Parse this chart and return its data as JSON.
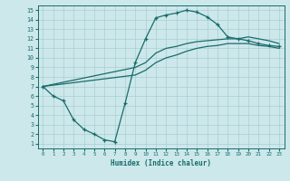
{
  "xlabel": "Humidex (Indice chaleur)",
  "background_color": "#cce8eb",
  "grid_color": "#aacdd2",
  "line_color": "#1a6b6b",
  "xlim": [
    -0.5,
    23.5
  ],
  "ylim": [
    0.5,
    15.5
  ],
  "xticks": [
    0,
    1,
    2,
    3,
    4,
    5,
    6,
    7,
    8,
    9,
    10,
    11,
    12,
    13,
    14,
    15,
    16,
    17,
    18,
    19,
    20,
    21,
    22,
    23
  ],
  "yticks": [
    1,
    2,
    3,
    4,
    5,
    6,
    7,
    8,
    9,
    10,
    11,
    12,
    13,
    14,
    15
  ],
  "curve_marker": {
    "x": [
      0,
      1,
      2,
      3,
      4,
      5,
      6,
      7,
      8,
      9,
      10,
      11,
      12,
      13,
      14,
      15,
      16,
      17,
      18,
      19,
      20,
      21,
      22,
      23
    ],
    "y": [
      7.0,
      6.0,
      5.5,
      3.5,
      2.5,
      2.0,
      1.4,
      1.2,
      5.2,
      9.5,
      12.0,
      14.2,
      14.5,
      14.7,
      15.0,
      14.8,
      14.3,
      13.5,
      12.2,
      12.0,
      11.8,
      11.5,
      11.3,
      11.2
    ]
  },
  "curve_upper": {
    "x": [
      0,
      9,
      10,
      11,
      12,
      13,
      14,
      15,
      16,
      17,
      18,
      19,
      20,
      21,
      22,
      23
    ],
    "y": [
      7.0,
      9.0,
      9.5,
      10.5,
      11.0,
      11.2,
      11.5,
      11.7,
      11.8,
      11.9,
      12.0,
      12.0,
      12.2,
      12.0,
      11.8,
      11.5
    ]
  },
  "curve_lower": {
    "x": [
      0,
      9,
      10,
      11,
      12,
      13,
      14,
      15,
      16,
      17,
      18,
      19,
      20,
      21,
      22,
      23
    ],
    "y": [
      7.0,
      8.2,
      8.7,
      9.5,
      10.0,
      10.3,
      10.7,
      11.0,
      11.2,
      11.3,
      11.5,
      11.5,
      11.5,
      11.3,
      11.2,
      11.0
    ]
  }
}
